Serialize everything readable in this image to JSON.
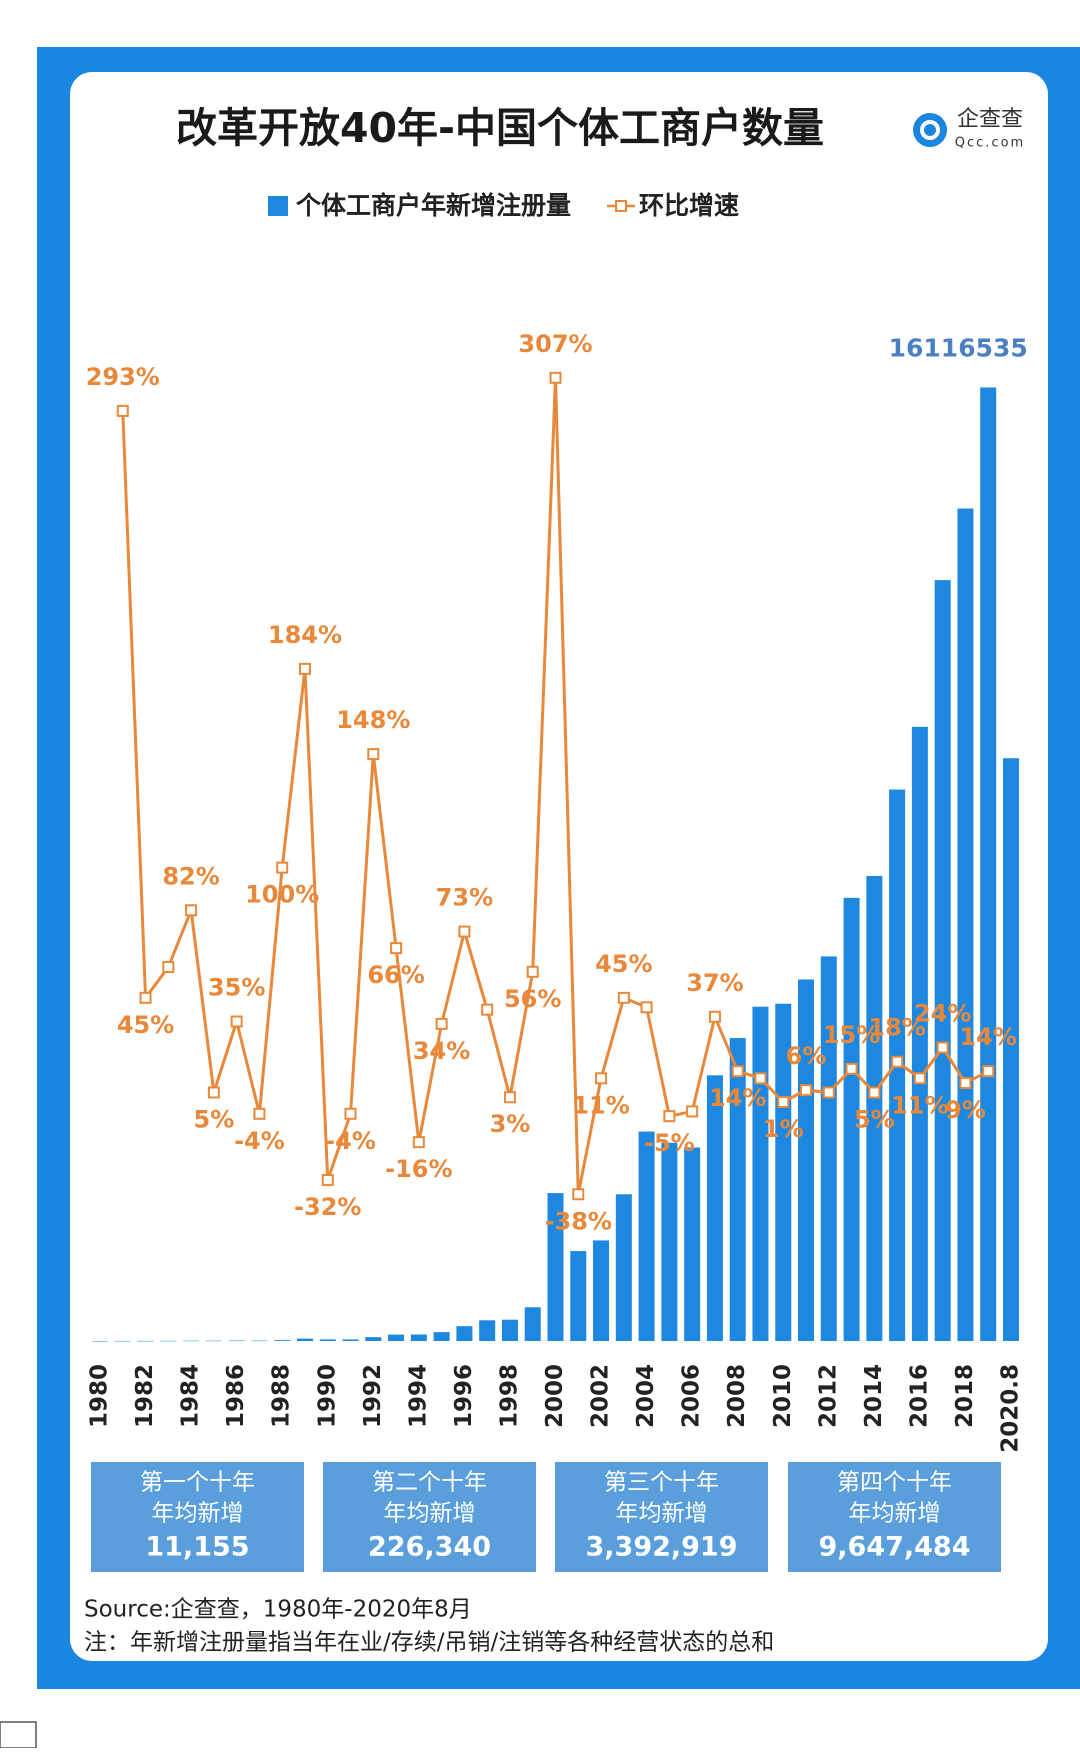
{
  "chart_data": {
    "type": "bar-line",
    "title": "改革开放40年-中国个体工商户数量",
    "categories": [
      "1980",
      null,
      "1982",
      null,
      "1984",
      null,
      "1986",
      null,
      "1988",
      null,
      "1990",
      null,
      "1992",
      null,
      "1994",
      null,
      "1996",
      null,
      "1998",
      null,
      "2000",
      null,
      "2002",
      null,
      "2004",
      null,
      "2006",
      null,
      "2008",
      null,
      "2010",
      null,
      "2012",
      null,
      "2014",
      null,
      "2016",
      null,
      "2018",
      null,
      "2020.8"
    ],
    "series": [
      {
        "name": "个体工商户年新增注册量",
        "type": "bar",
        "color": "#1e88e0",
        "values": [
          300,
          1200,
          1800,
          2800,
          5100,
          5400,
          7300,
          7000,
          14000,
          40000,
          27000,
          26000,
          65000,
          108000,
          110000,
          150000,
          250000,
          350000,
          360000,
          570000,
          2500000,
          1520000,
          1700000,
          2480000,
          3540000,
          3350000,
          3270000,
          4490000,
          5120000,
          5650000,
          5700000,
          6110000,
          6500000,
          7490000,
          7860000,
          9320000,
          10380000,
          12860000,
          14070000,
          16116535,
          9850000
        ]
      },
      {
        "name": "环比增速",
        "type": "line",
        "axis": "y2",
        "color": "#e8883a",
        "values": [
          null,
          293,
          45,
          58,
          82,
          5,
          35,
          -4,
          100,
          184,
          -32,
          -4,
          148,
          66,
          -16,
          34,
          73,
          40,
          3,
          56,
          307,
          -38,
          11,
          45,
          41,
          -5,
          -3,
          37,
          14,
          11,
          1,
          6,
          5,
          15,
          5,
          18,
          11,
          24,
          9,
          14,
          null
        ],
        "value_labels": [
          null,
          "293%",
          "45%",
          null,
          "82%",
          "5%",
          "35%",
          "-4%",
          "100%",
          "184%",
          "-32%",
          "-4%",
          "148%",
          "66%",
          "-16%",
          "34%",
          "73%",
          null,
          "3%",
          "56%",
          "307%",
          "-38%",
          "11%",
          "45%",
          null,
          "-5%",
          null,
          "37%",
          "14%",
          null,
          "1%",
          "6%",
          null,
          "15%",
          "5%",
          "18%",
          "11%",
          "24%",
          "9%",
          "14%",
          null
        ]
      }
    ],
    "ylim": [
      0,
      18000000
    ],
    "y2lim": [
      -100,
      350
    ],
    "legend": "top"
  },
  "logo": {
    "name": "企查查",
    "site": "Qcc.com"
  },
  "panels": [
    {
      "title": "第一个十年",
      "subtitle": "年均新增",
      "value": "11,155"
    },
    {
      "title": "第二个十年",
      "subtitle": "年均新增",
      "value": "226,340"
    },
    {
      "title": "第三个十年",
      "subtitle": "年均新增",
      "value": "3,392,919"
    },
    {
      "title": "第四个十年",
      "subtitle": "年均新增",
      "value": "9,647,484"
    }
  ],
  "source": "Source:企查查，1980年-2020年8月",
  "note": "注：年新增注册量指当年在业/存续/吊销/注销等各种经营状态的总和"
}
